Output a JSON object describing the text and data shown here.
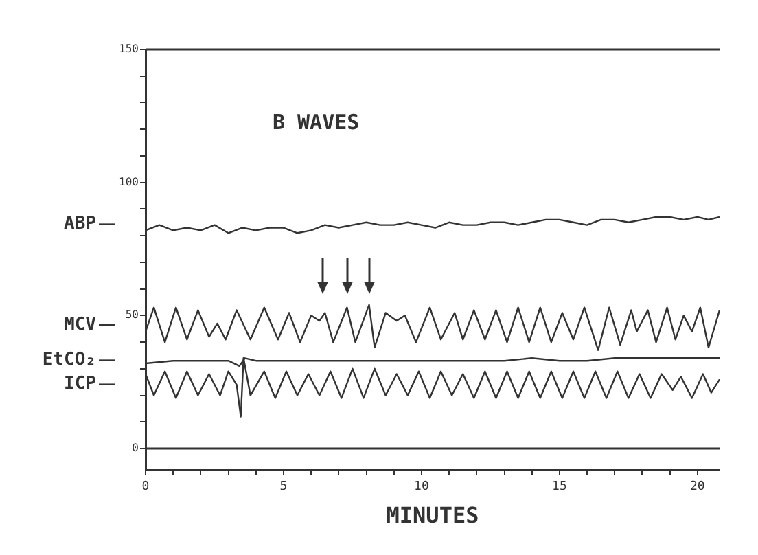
{
  "chart_data": {
    "type": "line",
    "title": "B WAVES",
    "xlabel": "MINUTES",
    "xlim": [
      0,
      20.8
    ],
    "xticks": [
      0,
      {
        "value": 1,
        "label": null
      },
      {
        "value": 2,
        "label": null
      },
      {
        "value": 3,
        "label": null
      },
      {
        "value": 4,
        "label": null
      },
      5,
      {
        "value": 6,
        "label": null
      },
      {
        "value": 7,
        "label": null
      },
      {
        "value": 8,
        "label": null
      },
      {
        "value": 9,
        "label": null
      },
      10,
      {
        "value": 11,
        "label": null
      },
      {
        "value": 12,
        "label": null
      },
      {
        "value": 13,
        "label": null
      },
      {
        "value": 14,
        "label": null
      },
      15,
      {
        "value": 16,
        "label": null
      },
      {
        "value": 17,
        "label": null
      },
      {
        "value": 18,
        "label": null
      },
      {
        "value": 19,
        "label": null
      },
      20
    ],
    "ylim": [
      -8,
      150
    ],
    "yticks": [
      0,
      {
        "value": 10,
        "label": null
      },
      {
        "value": 20,
        "label": null
      },
      {
        "value": 30,
        "label": null
      },
      {
        "value": 40,
        "label": null
      },
      50,
      {
        "value": 60,
        "label": null
      },
      {
        "value": 70,
        "label": null
      },
      {
        "value": 80,
        "label": null
      },
      {
        "value": 90,
        "label": null
      },
      100,
      {
        "value": 110,
        "label": null
      },
      {
        "value": 120,
        "label": null
      },
      {
        "value": 130,
        "label": null
      },
      {
        "value": 140,
        "label": null
      },
      150
    ],
    "grid": false,
    "legend": "left",
    "marker": "none",
    "line_style": "solid",
    "ref_lines": [
      {
        "axis": "y",
        "value": 0,
        "color": "#333333"
      }
    ],
    "series": [
      {
        "name": "ABP",
        "color": "#333333",
        "x": [
          0,
          0.5,
          1,
          1.5,
          2,
          2.5,
          3,
          3.5,
          4,
          4.5,
          5,
          5.5,
          6,
          6.5,
          7,
          7.5,
          8,
          8.5,
          9,
          9.5,
          10,
          10.5,
          11,
          11.5,
          12,
          12.5,
          13,
          13.5,
          14,
          14.5,
          15,
          15.5,
          16,
          16.5,
          17,
          17.5,
          18,
          18.5,
          19,
          19.5,
          20,
          20.4,
          20.8
        ],
        "values": [
          82,
          84,
          82,
          83,
          82,
          84,
          81,
          83,
          82,
          83,
          83,
          81,
          82,
          84,
          83,
          84,
          85,
          84,
          84,
          85,
          84,
          83,
          85,
          84,
          84,
          85,
          85,
          84,
          85,
          86,
          86,
          85,
          84,
          86,
          86,
          85,
          86,
          87,
          87,
          86,
          87,
          86,
          87
        ]
      },
      {
        "name": "MCV",
        "color": "#333333",
        "x": [
          0,
          0.3,
          0.7,
          1.1,
          1.5,
          1.9,
          2.3,
          2.6,
          2.9,
          3.3,
          3.8,
          4.3,
          4.8,
          5.2,
          5.6,
          6,
          6.3,
          6.5,
          6.8,
          7.3,
          7.6,
          8.1,
          8.3,
          8.7,
          9.1,
          9.4,
          9.8,
          10.3,
          10.7,
          11.2,
          11.5,
          11.9,
          12.3,
          12.7,
          13.1,
          13.5,
          13.9,
          14.3,
          14.7,
          15.1,
          15.5,
          15.9,
          16.4,
          16.8,
          17.2,
          17.6,
          17.8,
          18.2,
          18.5,
          18.9,
          19.2,
          19.5,
          19.8,
          20.1,
          20.4,
          20.8
        ],
        "values": [
          44,
          53,
          40,
          53,
          41,
          52,
          42,
          47,
          41,
          52,
          41,
          53,
          41,
          51,
          40,
          50,
          48,
          51,
          40,
          53,
          40,
          54,
          38,
          51,
          48,
          50,
          40,
          53,
          41,
          51,
          41,
          52,
          41,
          52,
          40,
          53,
          40,
          53,
          40,
          51,
          41,
          53,
          37,
          53,
          39,
          52,
          44,
          52,
          40,
          53,
          41,
          50,
          44,
          53,
          38,
          52
        ]
      },
      {
        "name": "EtCO₂",
        "color": "#333333",
        "x": [
          0,
          1,
          2,
          3,
          3.4,
          3.6,
          4,
          5,
          6,
          7,
          8,
          9,
          10,
          11,
          12,
          13,
          14,
          15,
          16,
          17,
          18,
          19,
          20,
          20.8
        ],
        "values": [
          32,
          33,
          33,
          33,
          31,
          34,
          33,
          33,
          33,
          33,
          33,
          33,
          33,
          33,
          33,
          33,
          34,
          33,
          33,
          34,
          34,
          34,
          34,
          34
        ]
      },
      {
        "name": "ICP",
        "color": "#333333",
        "x": [
          0,
          0.3,
          0.7,
          1.1,
          1.5,
          1.9,
          2.3,
          2.7,
          3,
          3.3,
          3.45,
          3.55,
          3.8,
          4.3,
          4.7,
          5.1,
          5.5,
          5.9,
          6.3,
          6.7,
          7.1,
          7.5,
          7.9,
          8.3,
          8.7,
          9.1,
          9.5,
          9.9,
          10.3,
          10.7,
          11.1,
          11.5,
          11.9,
          12.3,
          12.7,
          13.1,
          13.5,
          13.9,
          14.3,
          14.7,
          15.1,
          15.5,
          15.9,
          16.3,
          16.7,
          17.1,
          17.5,
          17.9,
          18.3,
          18.7,
          19.1,
          19.4,
          19.8,
          20.2,
          20.5,
          20.8
        ],
        "values": [
          28,
          20,
          29,
          19,
          29,
          20,
          28,
          20,
          29,
          24,
          12,
          34,
          20,
          29,
          19,
          29,
          20,
          28,
          20,
          29,
          19,
          30,
          19,
          30,
          20,
          28,
          20,
          29,
          19,
          29,
          20,
          28,
          19,
          29,
          19,
          29,
          19,
          29,
          19,
          29,
          19,
          29,
          19,
          29,
          19,
          29,
          19,
          28,
          19,
          28,
          22,
          27,
          19,
          28,
          21,
          26
        ]
      }
    ]
  }
}
